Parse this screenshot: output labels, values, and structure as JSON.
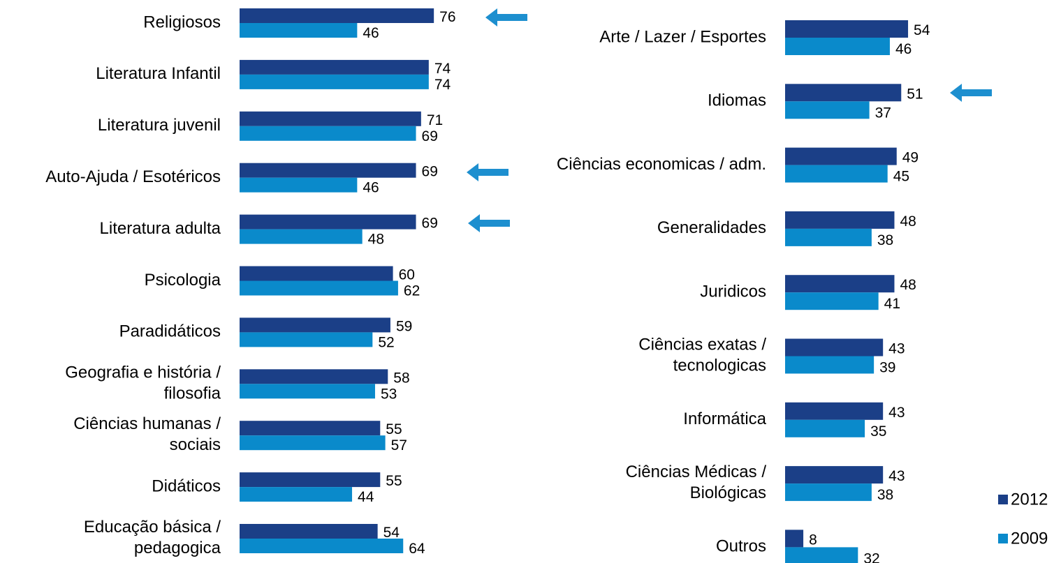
{
  "chart_data": [
    {
      "type": "bar",
      "orientation": "horizontal",
      "categories": [
        "Religiosos",
        "Literatura Infantil",
        "Literatura juvenil",
        "Auto-Ajuda / Esotéricos",
        "Literatura adulta",
        "Psicologia",
        "Paradidáticos",
        "Geografia e história /\nfilosofia",
        "Ciências humanas /\nsociais",
        "Didáticos",
        "Educação básica /\npedagogica"
      ],
      "series": [
        {
          "color": "#1b3f87",
          "values": [
            76,
            74,
            71,
            69,
            69,
            60,
            59,
            58,
            55,
            55,
            54
          ]
        },
        {
          "color": "#0a8acb",
          "values": [
            46,
            74,
            69,
            46,
            48,
            62,
            52,
            53,
            57,
            44,
            64
          ]
        }
      ]
    },
    {
      "type": "bar",
      "orientation": "horizontal",
      "categories": [
        "Arte / Lazer / Esportes",
        "Idiomas",
        "Ciências economicas / adm.",
        "Generalidades",
        "Juridicos",
        "Ciências exatas /\ntecnologicas",
        "Informática",
        "Ciências Médicas /\nBiológicas",
        "Outros"
      ],
      "series": [
        {
          "color": "#1b3f87",
          "values": [
            54,
            51,
            49,
            48,
            48,
            43,
            43,
            43,
            8
          ]
        },
        {
          "color": "#0a8acb",
          "values": [
            46,
            37,
            45,
            38,
            41,
            39,
            35,
            38,
            32
          ]
        }
      ]
    }
  ],
  "legend": [
    {
      "name": "2012",
      "color": "#1b3f87"
    },
    {
      "name": "2009",
      "color": "#0a8acb"
    }
  ]
}
